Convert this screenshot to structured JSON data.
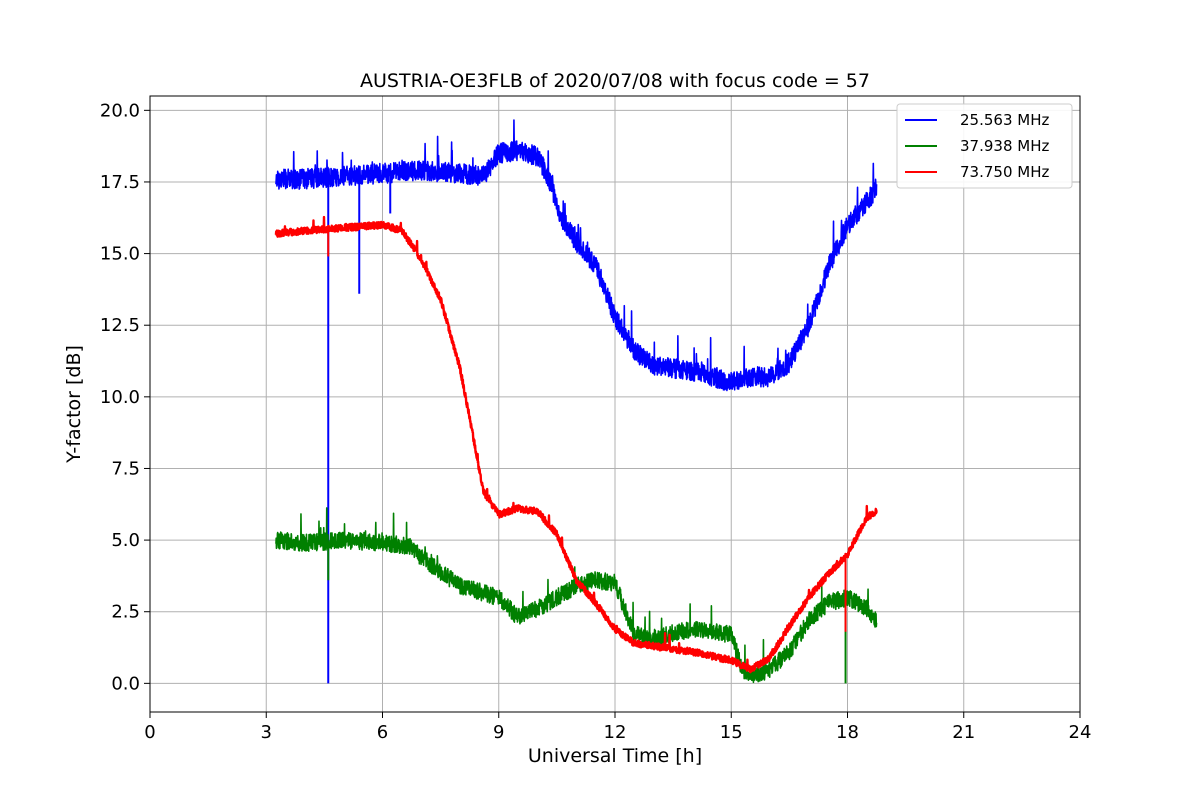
{
  "chart_data": {
    "type": "line",
    "title": "AUSTRIA-OE3FLB of 2020/07/08 with focus code = 57",
    "xlabel": "Universal Time [h]",
    "ylabel": "Y-factor [dB]",
    "xlim": [
      0,
      24
    ],
    "ylim": [
      -1.0,
      20.5
    ],
    "xticks": [
      0,
      3,
      6,
      9,
      12,
      15,
      18,
      21,
      24
    ],
    "yticks": [
      0.0,
      2.5,
      5.0,
      7.5,
      10.0,
      12.5,
      15.0,
      17.5,
      20.0
    ],
    "xtick_labels": [
      "0",
      "3",
      "6",
      "9",
      "12",
      "15",
      "18",
      "21",
      "24"
    ],
    "ytick_labels": [
      "0.0",
      "2.5",
      "5.0",
      "7.5",
      "10.0",
      "12.5",
      "15.0",
      "17.5",
      "20.0"
    ],
    "grid": true,
    "legend_position": "top-right",
    "series": [
      {
        "name": "25.563 MHz",
        "color": "#0000ff",
        "noise": 0.35,
        "x": [
          3.25,
          4.0,
          5.0,
          6.0,
          7.0,
          8.0,
          8.6,
          9.0,
          9.5,
          10.0,
          10.3,
          10.6,
          11.0,
          11.5,
          12.0,
          12.5,
          13.0,
          14.0,
          15.0,
          15.5,
          16.0,
          16.5,
          17.0,
          17.5,
          18.0,
          18.5,
          18.75
        ],
        "y": [
          17.6,
          17.6,
          17.7,
          17.8,
          17.9,
          17.8,
          17.7,
          18.5,
          18.6,
          18.4,
          17.6,
          16.3,
          15.4,
          14.6,
          12.8,
          11.6,
          11.1,
          10.9,
          10.5,
          10.7,
          10.7,
          11.2,
          12.5,
          14.5,
          16.0,
          16.8,
          17.3
        ],
        "spikes": [
          [
            4.6,
            0.0
          ],
          [
            5.4,
            13.6
          ],
          [
            6.2,
            16.4
          ],
          [
            17.95,
            15.5
          ]
        ]
      },
      {
        "name": "37.938 MHz",
        "color": "#008000",
        "noise": 0.3,
        "x": [
          3.25,
          4.0,
          5.0,
          6.0,
          6.7,
          7.0,
          7.5,
          8.0,
          9.0,
          9.5,
          10.0,
          11.0,
          11.5,
          12.0,
          12.5,
          13.0,
          14.0,
          15.0,
          15.3,
          15.7,
          16.0,
          16.5,
          17.0,
          17.5,
          18.0,
          18.5,
          18.75
        ],
        "y": [
          5.0,
          4.9,
          5.0,
          4.9,
          4.8,
          4.4,
          3.9,
          3.4,
          3.0,
          2.3,
          2.6,
          3.4,
          3.6,
          3.5,
          1.7,
          1.6,
          1.9,
          1.7,
          0.4,
          0.3,
          0.5,
          1.1,
          2.2,
          2.8,
          3.0,
          2.6,
          2.2
        ],
        "spikes": [
          [
            4.6,
            3.6
          ],
          [
            17.95,
            0.0
          ]
        ]
      },
      {
        "name": "73.750 MHz",
        "color": "#ff0000",
        "noise": 0.12,
        "x": [
          3.25,
          4.0,
          5.0,
          6.0,
          6.5,
          7.0,
          7.5,
          8.0,
          8.3,
          8.6,
          9.0,
          9.5,
          10.0,
          10.5,
          11.0,
          11.5,
          12.0,
          12.5,
          13.0,
          14.0,
          15.0,
          15.5,
          16.0,
          16.5,
          17.0,
          17.5,
          18.0,
          18.5,
          18.75
        ],
        "y": [
          15.7,
          15.8,
          15.9,
          16.0,
          15.8,
          14.8,
          13.4,
          11.0,
          8.9,
          6.7,
          5.9,
          6.1,
          6.0,
          5.2,
          3.6,
          2.8,
          1.9,
          1.4,
          1.3,
          1.1,
          0.8,
          0.5,
          0.9,
          2.0,
          3.0,
          3.8,
          4.5,
          5.8,
          6.0
        ],
        "spikes": [
          [
            4.6,
            14.9
          ],
          [
            17.95,
            1.8
          ]
        ]
      }
    ]
  }
}
